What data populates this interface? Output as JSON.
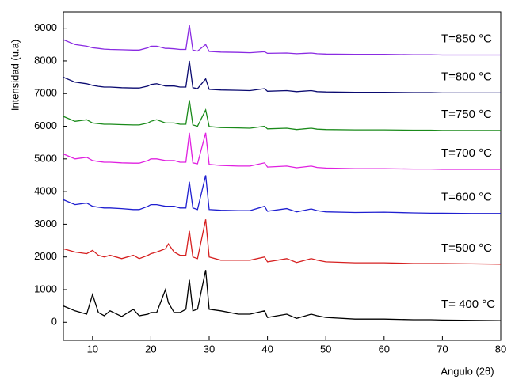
{
  "chart_data": {
    "type": "line",
    "x_label": "Angulo (2θ)",
    "y_label": "Intensidad (u.a)",
    "xlim": [
      5,
      80
    ],
    "ylim": [
      -550,
      9500
    ],
    "xticks": [
      10,
      20,
      30,
      40,
      50,
      60,
      70,
      80
    ],
    "yticks": [
      0,
      1000,
      2000,
      3000,
      4000,
      5000,
      6000,
      7000,
      8000,
      9000
    ],
    "x": [
      5,
      7,
      9,
      10,
      11,
      12,
      13,
      15,
      17,
      18,
      19.5,
      20,
      21,
      22.5,
      23,
      24,
      25,
      26,
      26.6,
      27.2,
      28,
      29.4,
      30,
      32,
      35,
      37,
      39.5,
      40,
      43.3,
      45,
      47.5,
      48.5,
      50,
      55,
      60,
      65,
      68,
      70,
      75,
      80
    ],
    "series": [
      {
        "name": "T= 400 °C",
        "color": "#000000",
        "values": [
          500,
          350,
          250,
          850,
          300,
          200,
          350,
          180,
          400,
          200,
          250,
          300,
          300,
          1000,
          600,
          300,
          300,
          400,
          1300,
          350,
          400,
          1600,
          400,
          350,
          250,
          250,
          350,
          150,
          250,
          120,
          250,
          200,
          150,
          100,
          100,
          80,
          80,
          70,
          60,
          50
        ]
      },
      {
        "name": "T=500 °C",
        "color": "#d62020",
        "values": [
          2250,
          2150,
          2100,
          2200,
          2050,
          2000,
          2050,
          1950,
          2050,
          1950,
          2050,
          2100,
          2150,
          2250,
          2400,
          2150,
          2050,
          2050,
          2800,
          2000,
          1950,
          3150,
          2000,
          1900,
          1900,
          1900,
          2000,
          1850,
          1950,
          1830,
          1950,
          1900,
          1850,
          1820,
          1820,
          1800,
          1800,
          1800,
          1790,
          1780
        ]
      },
      {
        "name": "T=600 °C",
        "color": "#1f1fd0",
        "values": [
          3750,
          3600,
          3650,
          3550,
          3520,
          3500,
          3500,
          3480,
          3450,
          3450,
          3550,
          3600,
          3600,
          3550,
          3550,
          3550,
          3500,
          3500,
          4300,
          3500,
          3450,
          4500,
          3450,
          3430,
          3420,
          3420,
          3550,
          3400,
          3480,
          3380,
          3470,
          3420,
          3380,
          3360,
          3370,
          3350,
          3340,
          3340,
          3330,
          3330
        ]
      },
      {
        "name": "T=700 °C",
        "color": "#e020e0",
        "values": [
          5150,
          5000,
          5050,
          4950,
          4920,
          4900,
          4900,
          4880,
          4870,
          4870,
          4950,
          5000,
          5000,
          4950,
          4950,
          4950,
          4900,
          4900,
          5800,
          4880,
          4850,
          5800,
          4830,
          4800,
          4780,
          4780,
          4880,
          4750,
          4780,
          4730,
          4780,
          4740,
          4720,
          4700,
          4700,
          4690,
          4690,
          4680,
          4680,
          4680
        ]
      },
      {
        "name": "T=750 °C",
        "color": "#1a8a1a",
        "values": [
          6300,
          6150,
          6200,
          6100,
          6080,
          6060,
          6060,
          6050,
          6040,
          6040,
          6100,
          6150,
          6200,
          6100,
          6100,
          6100,
          6060,
          6060,
          6800,
          6040,
          6000,
          6500,
          5990,
          5960,
          5950,
          5940,
          6000,
          5920,
          5940,
          5900,
          5940,
          5910,
          5900,
          5890,
          5890,
          5880,
          5880,
          5870,
          5870,
          5870
        ]
      },
      {
        "name": "T=800 °C",
        "color": "#0a0a70",
        "values": [
          7500,
          7350,
          7300,
          7250,
          7220,
          7200,
          7200,
          7180,
          7170,
          7170,
          7230,
          7280,
          7300,
          7230,
          7230,
          7230,
          7200,
          7200,
          8000,
          7180,
          7150,
          7450,
          7130,
          7110,
          7100,
          7090,
          7150,
          7070,
          7090,
          7060,
          7090,
          7060,
          7050,
          7040,
          7040,
          7030,
          7030,
          7020,
          7020,
          7020
        ]
      },
      {
        "name": "T=850 °C",
        "color": "#8a2be2",
        "values": [
          8650,
          8500,
          8450,
          8400,
          8380,
          8360,
          8350,
          8340,
          8330,
          8330,
          8400,
          8450,
          8450,
          8380,
          8380,
          8370,
          8350,
          8350,
          9100,
          8330,
          8300,
          8500,
          8290,
          8270,
          8260,
          8250,
          8280,
          8230,
          8240,
          8220,
          8240,
          8220,
          8210,
          8200,
          8200,
          8190,
          8190,
          8180,
          8180,
          8180
        ]
      }
    ]
  }
}
